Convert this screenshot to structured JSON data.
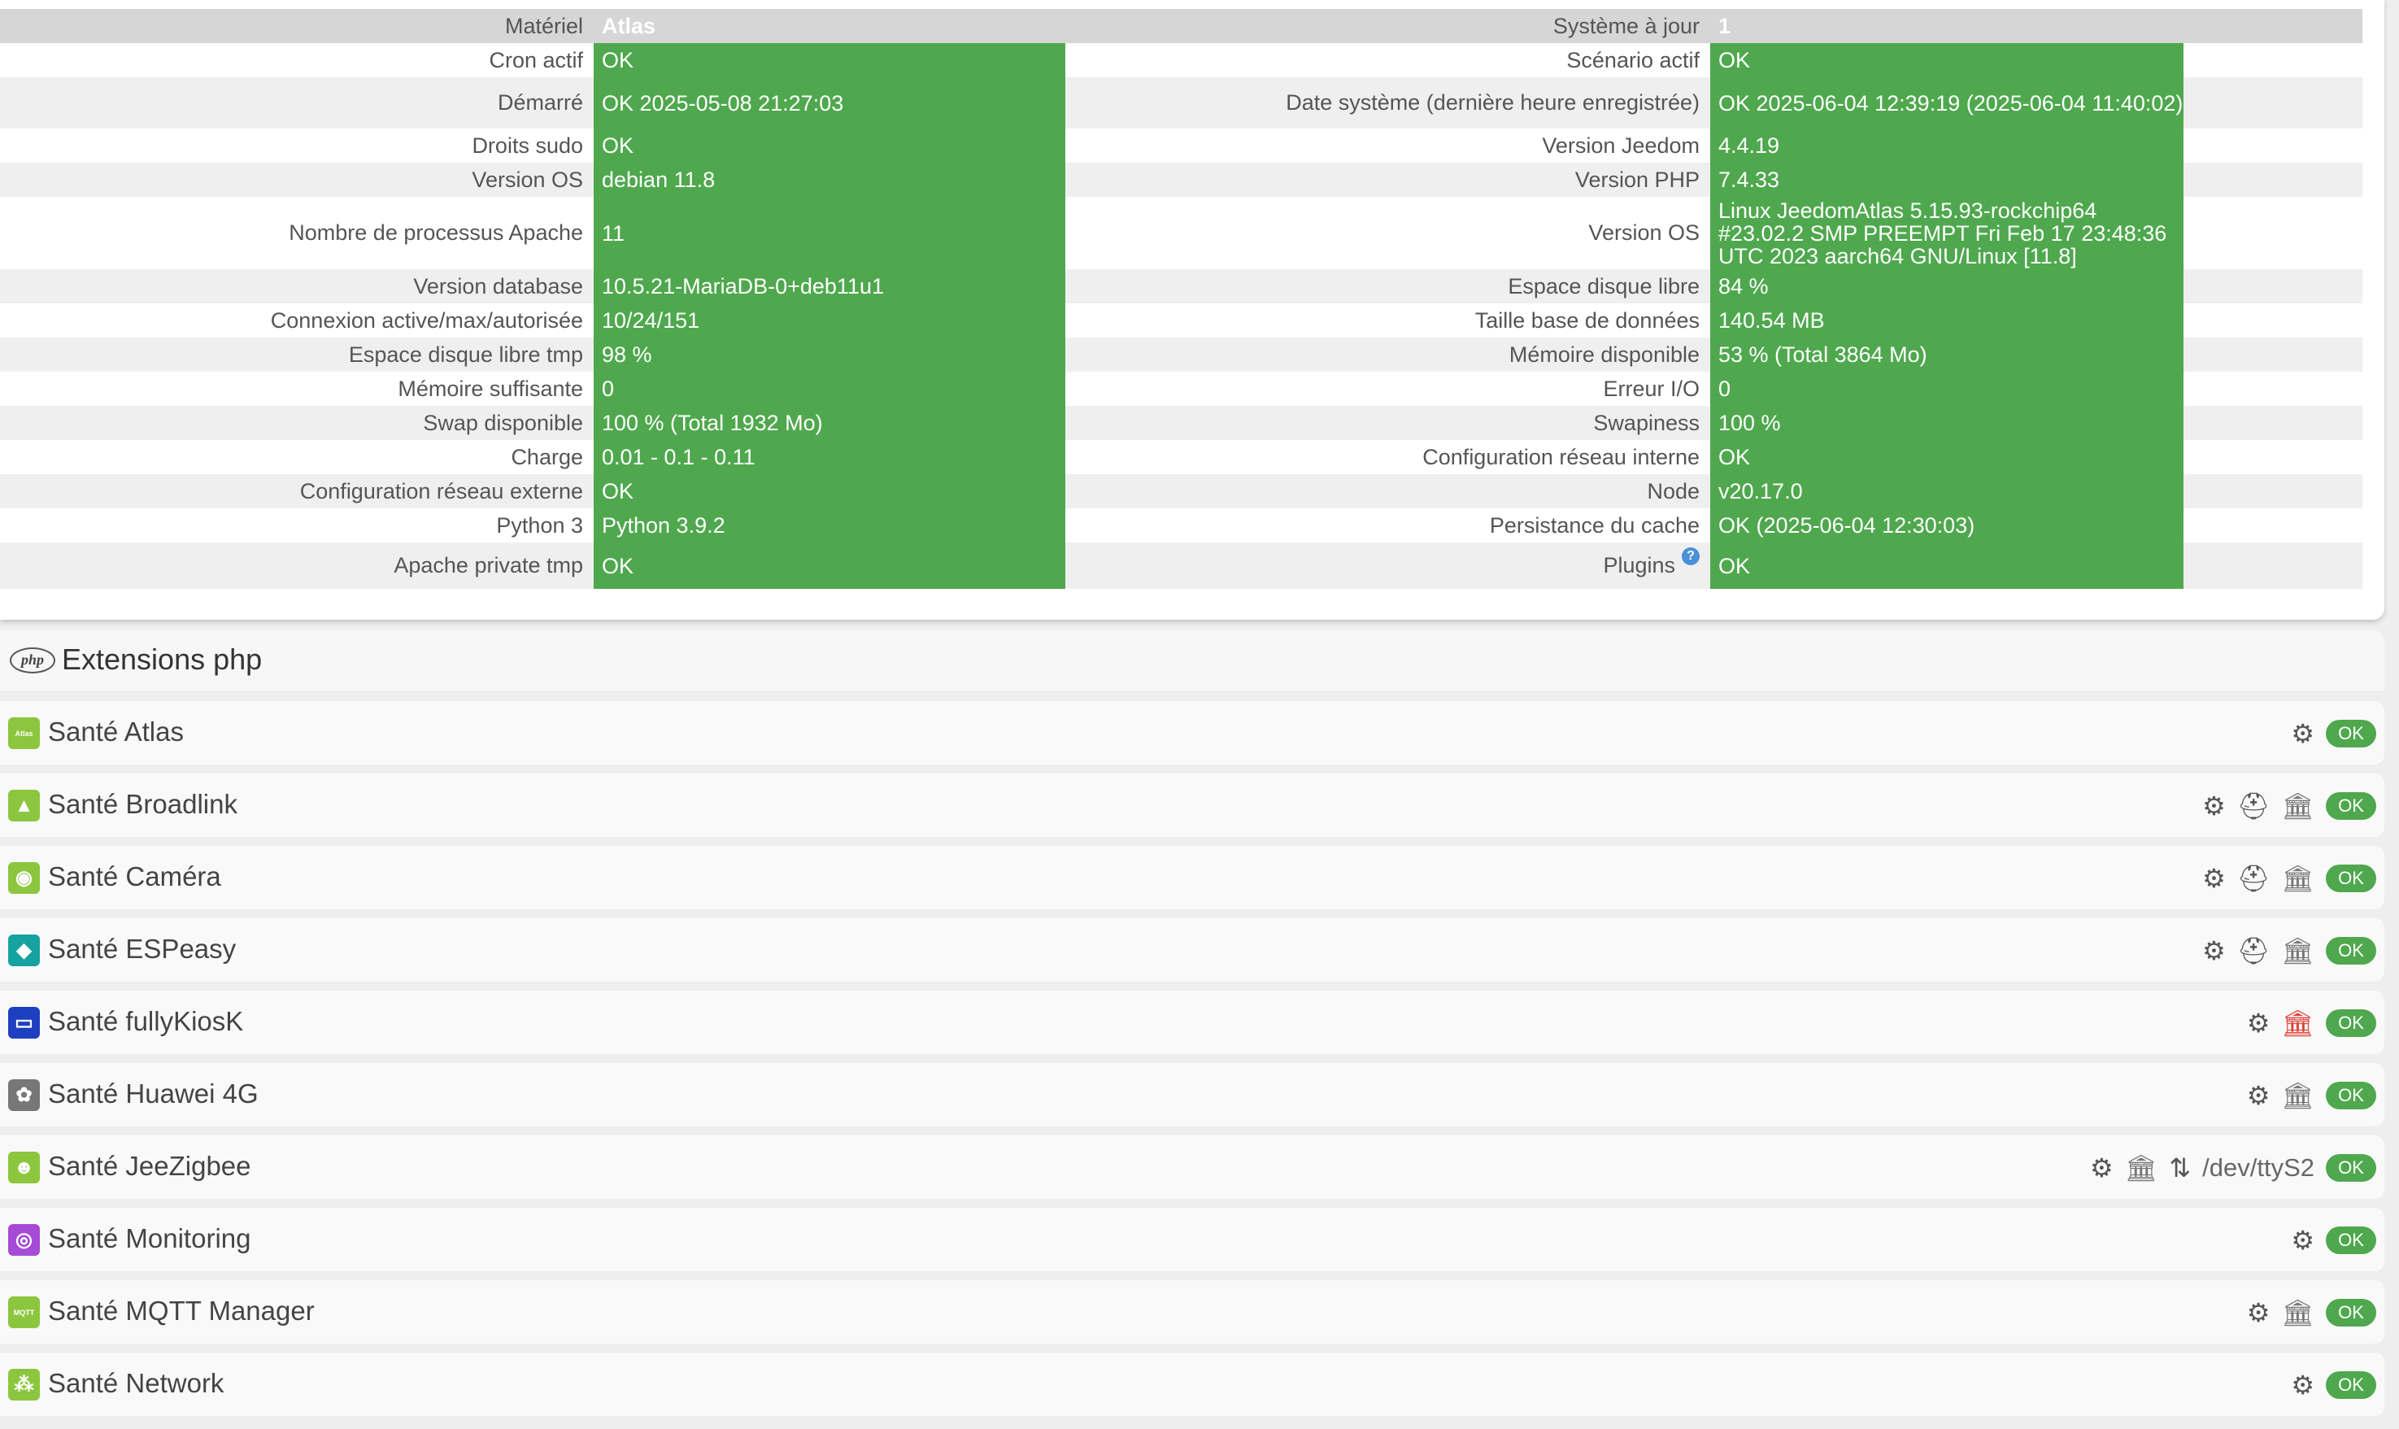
{
  "health": {
    "rows": [
      {
        "l1": "Matériel",
        "v1": "Atlas",
        "l2": "Système à jour",
        "v2": "1",
        "type": "head"
      },
      {
        "l1": "Cron actif",
        "v1": "OK",
        "l2": "Scénario actif",
        "v2": "OK"
      },
      {
        "l1": "Démarré",
        "v1": "OK 2025-05-08 21:27:03",
        "l2": "Date système (dernière heure enregistrée)",
        "v2": "OK 2025-06-04 12:39:19 (2025-06-04 11:40:02)"
      },
      {
        "l1": "Droits sudo",
        "v1": "OK",
        "l2": "Version Jeedom",
        "v2": "4.4.19"
      },
      {
        "l1": "Version OS",
        "v1": "debian 11.8",
        "l2": "Version PHP",
        "v2": "7.4.33"
      },
      {
        "l1": "Nombre de processus Apache",
        "v1": "11",
        "l2": "Version OS",
        "v2": "Linux JeedomAtlas 5.15.93-rockchip64 #23.02.2 SMP PREEMPT Fri Feb 17 23:48:36 UTC 2023 aarch64 GNU/Linux [11.8]"
      },
      {
        "l1": "Version database",
        "v1": "10.5.21-MariaDB-0+deb11u1",
        "l2": "Espace disque libre",
        "v2": "84 %"
      },
      {
        "l1": "Connexion active/max/autorisée",
        "v1": "10/24/151",
        "l2": "Taille base de données",
        "v2": "140.54 MB"
      },
      {
        "l1": "Espace disque libre tmp",
        "v1": "98 %",
        "l2": "Mémoire disponible",
        "v2": "53 % (Total 3864 Mo)"
      },
      {
        "l1": "Mémoire suffisante",
        "v1": "0",
        "l2": "Erreur I/O",
        "v2": "0"
      },
      {
        "l1": "Swap disponible",
        "v1": "100 % (Total 1932 Mo)",
        "l2": "Swapiness",
        "v2": "100 %"
      },
      {
        "l1": "Charge",
        "v1": "0.01 - 0.1 - 0.11",
        "l2": "Configuration réseau interne",
        "v2": "OK"
      },
      {
        "l1": "Configuration réseau externe",
        "v1": "OK",
        "l2": "Node",
        "v2": "v20.17.0"
      },
      {
        "l1": "Python 3",
        "v1": "Python 3.9.2",
        "l2": "Persistance du cache",
        "v2": "OK (2025-06-04 12:30:03)"
      },
      {
        "l1": "Apache private tmp",
        "v1": "OK",
        "l2": "Plugins",
        "v2": "OK",
        "help": "?"
      }
    ]
  },
  "php_section": {
    "logo": "php",
    "title": "Extensions php"
  },
  "plugins": [
    {
      "name": "Santé Atlas",
      "icon": "atlas-icon",
      "icon_text": "Atlas",
      "color": "#8cc63f",
      "actions": [
        "cogs-icon"
      ],
      "status": "OK"
    },
    {
      "name": "Santé Broadlink",
      "icon": "broadlink-icon",
      "color": "#8cc63f",
      "actions": [
        "cogs-icon",
        "medkit-icon",
        "bank-icon"
      ],
      "status": "OK"
    },
    {
      "name": "Santé Caméra",
      "icon": "camera-icon",
      "color": "#8cc63f",
      "actions": [
        "cogs-icon",
        "medkit-icon",
        "bank-icon"
      ],
      "status": "OK"
    },
    {
      "name": "Santé ESPeasy",
      "icon": "espeasy-icon",
      "color": "#17a2a2",
      "actions": [
        "cogs-icon",
        "medkit-icon",
        "bank-icon"
      ],
      "status": "OK"
    },
    {
      "name": "Santé fullyKiosK",
      "icon": "fullykiosk-icon",
      "color": "#1e3fc0",
      "actions": [
        "cogs-icon",
        "bank-icon-red"
      ],
      "status": "OK"
    },
    {
      "name": "Santé Huawei 4G",
      "icon": "huawei-icon",
      "color": "#777777",
      "actions": [
        "cogs-icon",
        "bank-icon"
      ],
      "status": "OK"
    },
    {
      "name": "Santé JeeZigbee",
      "icon": "jeezigbee-icon",
      "color": "#8cc63f",
      "actions": [
        "cogs-icon",
        "bank-icon",
        "sort-icon"
      ],
      "port": "/dev/ttyS2",
      "status": "OK"
    },
    {
      "name": "Santé Monitoring",
      "icon": "monitoring-icon",
      "color": "#a64bd6",
      "actions": [
        "cogs-icon"
      ],
      "status": "OK"
    },
    {
      "name": "Santé MQTT Manager",
      "icon": "mqtt-icon",
      "icon_text": "MQTT",
      "color": "#8cc63f",
      "actions": [
        "cogs-icon",
        "bank-icon"
      ],
      "status": "OK"
    },
    {
      "name": "Santé Network",
      "icon": "network-icon",
      "color": "#8cc63f",
      "actions": [
        "cogs-icon"
      ],
      "status": "OK"
    }
  ]
}
